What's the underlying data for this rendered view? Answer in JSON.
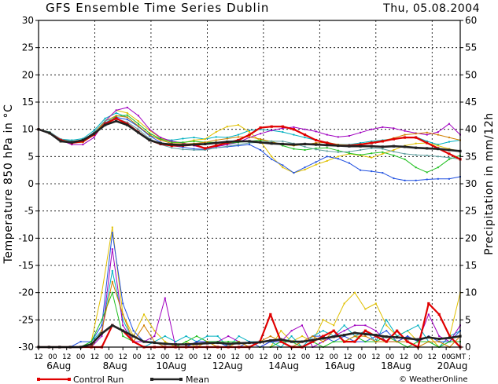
{
  "chart_data": {
    "type": "line",
    "title": "GFS Ensemble Time Series Dublin",
    "date": "Thu, 05.08.2004",
    "ylabel_left": "Temperature 850 hPa in °C",
    "ylabel_right": "Precipitation in mm/12h",
    "ylim_left": [
      -30,
      30
    ],
    "ylim_right": [
      0,
      60
    ],
    "yticks_left": [
      "30",
      "25",
      "20",
      "15",
      "10",
      "5",
      "0",
      "-5",
      "-10",
      "-15",
      "-20",
      "-25",
      "-30"
    ],
    "yticks_right": [
      "60",
      "55",
      "50",
      "45",
      "40",
      "35",
      "30",
      "25",
      "20",
      "15",
      "10",
      "5",
      "0"
    ],
    "x_hour_ticks": [
      "12",
      "00",
      "12",
      "00",
      "12",
      "00",
      "12",
      "00",
      "12",
      "00",
      "12",
      "00",
      "12",
      "00",
      "12",
      "00",
      "12",
      "00",
      "12",
      "00",
      "12",
      "00",
      "12",
      "00",
      "12",
      "00",
      "12",
      "00",
      "12",
      "00",
      "GMT ;"
    ],
    "x_date_labels": [
      {
        "label": "6Aug",
        "step": 2
      },
      {
        "label": "8Aug",
        "step": 6
      },
      {
        "label": "10Aug",
        "step": 10
      },
      {
        "label": "12Aug",
        "step": 14
      },
      {
        "label": "14Aug",
        "step": 18
      },
      {
        "label": "16Aug",
        "step": 22
      },
      {
        "label": "18Aug",
        "step": 26
      },
      {
        "label": "20Aug",
        "step": 30
      }
    ],
    "x_unit": "12-hourly steps from 05 Aug 12 GMT",
    "grid": true,
    "legend": [
      {
        "name": "Control Run",
        "color": "#e00000"
      },
      {
        "name": "Mean",
        "color": "#222222"
      }
    ],
    "credit": "© WeatherOnline",
    "temperature_series": [
      {
        "name": "Control Run",
        "color": "#e00000",
        "width": 2.2,
        "values": [
          10,
          9.3,
          8,
          7.5,
          7.8,
          9,
          11,
          12,
          11,
          9.5,
          8,
          7.3,
          7,
          7,
          7.2,
          6.5,
          7,
          7.5,
          8,
          9,
          10.3,
          10.5,
          10.5,
          10,
          9,
          8,
          7.5,
          7,
          7,
          7.2,
          7.5,
          7.8,
          8.2,
          8.5,
          8.5,
          7.5,
          6.5,
          5.5,
          4.5
        ]
      },
      {
        "name": "",
        "color": "#00b0c0",
        "width": 1,
        "values": [
          10,
          9.5,
          8.2,
          8,
          8.3,
          9.8,
          12,
          13,
          12.2,
          10.5,
          8.8,
          8.2,
          8,
          8.3,
          8.5,
          8.2,
          8.6,
          8.5,
          9,
          9.8,
          10,
          9.8,
          9.5,
          9,
          8.5,
          8,
          7.6,
          7.2,
          7.2,
          7.5,
          7.8,
          8,
          8.3,
          8.5,
          8.6,
          7.8,
          7.2,
          7.7,
          8
        ]
      },
      {
        "name": "",
        "color": "#e0c000",
        "width": 1,
        "values": [
          10,
          9.2,
          8,
          7.8,
          8,
          9.2,
          11.5,
          13.5,
          13,
          11.5,
          9.8,
          8.4,
          7.6,
          7.5,
          8,
          8.2,
          9.5,
          10.5,
          10.8,
          9.5,
          7.8,
          5,
          3,
          2,
          2.6,
          3.5,
          4.2,
          5,
          5.5,
          5.2,
          4.8,
          5.5,
          6.2,
          7,
          7.4,
          7.5,
          7,
          6.4,
          6
        ]
      },
      {
        "name": "",
        "color": "#a000c0",
        "width": 1,
        "values": [
          10,
          9.3,
          8,
          7.2,
          7.2,
          8.5,
          11.5,
          13.5,
          14,
          12.5,
          10,
          8.5,
          7.8,
          7.5,
          7,
          6.5,
          6.8,
          7.2,
          7.6,
          8.5,
          9.2,
          9.8,
          10.2,
          10.4,
          10,
          9.6,
          9,
          8.6,
          8.8,
          9.4,
          10,
          10.4,
          10.2,
          9.7,
          9.3,
          9,
          9.5,
          11,
          9
        ]
      },
      {
        "name": "",
        "color": "#2050e0",
        "width": 1,
        "values": [
          10,
          9.4,
          8,
          7.6,
          7.9,
          9.2,
          11.2,
          12.2,
          11.8,
          10.5,
          8.8,
          7.6,
          7,
          6.7,
          6.4,
          6.3,
          6.6,
          6.8,
          7,
          7.2,
          6.2,
          4.5,
          3.4,
          2,
          3,
          4,
          5,
          4.6,
          3.8,
          2.5,
          2.3,
          2,
          1,
          0.6,
          0.6,
          0.8,
          0.9,
          0.9,
          1.3
        ]
      },
      {
        "name": "",
        "color": "#20c020",
        "width": 1,
        "values": [
          10,
          9.5,
          8,
          7.7,
          7.9,
          9.2,
          11,
          12.4,
          12.6,
          11,
          9.3,
          8.2,
          7.6,
          7.6,
          7.8,
          7.6,
          7.6,
          7.4,
          7.6,
          7.8,
          8,
          7.8,
          7,
          6.4,
          6.2,
          6.5,
          6.6,
          6.1,
          5.6,
          5.3,
          5.6,
          5.8,
          5.2,
          4.5,
          3,
          2.1,
          3,
          4.5,
          5.2
        ]
      },
      {
        "name": "",
        "color": "#d08000",
        "width": 1,
        "values": [
          10,
          9.2,
          8,
          7.5,
          7.6,
          9,
          11.5,
          12.5,
          12.2,
          10.6,
          9,
          8,
          7.4,
          7.3,
          7.4,
          7.6,
          8,
          8.3,
          8.6,
          8.6,
          8.2,
          7.7,
          7.2,
          7,
          7.2,
          7.5,
          7.6,
          7.2,
          7.1,
          7.3,
          7.6,
          7.9,
          8.4,
          9,
          9.2,
          9.4,
          9,
          8.5,
          8
        ]
      },
      {
        "name": "",
        "color": "#60a0a0",
        "width": 1,
        "values": [
          10,
          9.5,
          8.2,
          7.8,
          8,
          9.5,
          11.6,
          12,
          11.3,
          10,
          8.3,
          7.2,
          6.6,
          6.3,
          6.2,
          6.2,
          6.6,
          6.9,
          7.2,
          7.5,
          7.6,
          7.8,
          7.8,
          7.4,
          6.8,
          6.3,
          6,
          5.8,
          5.9,
          6.2,
          6.5,
          6.4,
          5.9,
          5.5,
          5.3,
          5.2,
          5,
          4.8,
          4.5
        ]
      },
      {
        "name": "Mean",
        "color": "#222222",
        "width": 2.6,
        "values": [
          10,
          9.3,
          7.8,
          7.6,
          8,
          9.2,
          10.8,
          11.5,
          10.8,
          9.4,
          8,
          7.4,
          7.2,
          7.1,
          7.2,
          7.3,
          7.5,
          7.7,
          7.8,
          7.8,
          7.6,
          7.4,
          7.3,
          7.2,
          7.3,
          7.2,
          7.1,
          7,
          6.9,
          6.9,
          6.9,
          6.8,
          6.9,
          6.8,
          6.6,
          6.5,
          6.4,
          6.2,
          6
        ]
      }
    ],
    "precipitation_series": [
      {
        "name": "Control Run",
        "color": "#e00000",
        "width": 2.2,
        "values": [
          0,
          0,
          0,
          0,
          0,
          0,
          0,
          4,
          3,
          1,
          0,
          0,
          0,
          0,
          0,
          0,
          0,
          0,
          0,
          0,
          0,
          1,
          6,
          1,
          0,
          0,
          1,
          2,
          3,
          1,
          1,
          3,
          2,
          1,
          3,
          1,
          0,
          8,
          6,
          2,
          0
        ]
      },
      {
        "name": "",
        "color": "#e0c000",
        "width": 1,
        "values": [
          0,
          0,
          0,
          0,
          0,
          1,
          10,
          22,
          6,
          2,
          6,
          3,
          1,
          0,
          1,
          0,
          1,
          0,
          0,
          0,
          1,
          0,
          0,
          3,
          1,
          2,
          1,
          5,
          4,
          8,
          10,
          7,
          8,
          4,
          2,
          3,
          1,
          2,
          0,
          2,
          10
        ]
      },
      {
        "name": "",
        "color": "#00b0c0",
        "width": 1,
        "values": [
          0,
          0,
          0,
          0,
          0,
          1,
          3,
          14,
          5,
          1,
          0,
          1,
          2,
          1,
          2,
          1,
          2,
          2,
          0,
          2,
          1,
          1,
          1,
          0,
          2,
          0,
          2,
          3,
          2,
          4,
          2,
          3,
          1,
          5,
          2,
          3,
          4,
          1,
          0,
          2,
          3
        ]
      },
      {
        "name": "",
        "color": "#a000c0",
        "width": 1,
        "values": [
          0,
          0,
          0,
          0,
          0,
          0,
          2,
          18,
          4,
          1,
          1,
          2,
          9,
          0,
          0,
          1,
          1,
          1,
          2,
          1,
          0,
          0,
          1,
          1,
          3,
          4,
          0,
          1,
          2,
          3,
          4,
          4,
          3,
          1,
          1,
          2,
          1,
          6,
          2,
          1,
          4
        ]
      },
      {
        "name": "",
        "color": "#2050e0",
        "width": 1,
        "values": [
          0,
          0,
          0,
          0,
          1,
          1,
          4,
          21,
          8,
          3,
          1,
          1,
          0,
          0,
          0,
          1,
          1,
          1,
          0,
          0,
          1,
          0,
          1,
          1,
          0,
          1,
          2,
          2,
          1,
          2,
          1,
          1,
          2,
          3,
          1,
          2,
          1,
          2,
          1,
          1,
          3
        ]
      },
      {
        "name": "",
        "color": "#20c020",
        "width": 1,
        "values": [
          0,
          0,
          0,
          0,
          0,
          1,
          5,
          10,
          2,
          1,
          0,
          0,
          0,
          0,
          1,
          2,
          1,
          1,
          1,
          1,
          0,
          0,
          0,
          1,
          1,
          0,
          1,
          0,
          1,
          1,
          2,
          1,
          1,
          2,
          1,
          0,
          1,
          1,
          0,
          1,
          1
        ]
      },
      {
        "name": "",
        "color": "#d08000",
        "width": 1,
        "values": [
          0,
          0,
          0,
          0,
          0,
          0,
          3,
          12,
          6,
          1,
          4,
          1,
          0,
          0,
          0,
          0,
          1,
          0,
          0,
          1,
          0,
          1,
          2,
          1,
          0,
          1,
          2,
          1,
          3,
          1,
          2,
          2,
          1,
          1,
          1,
          1,
          0,
          1,
          1,
          0,
          2
        ]
      },
      {
        "name": "Mean",
        "color": "#222222",
        "width": 2.6,
        "values": [
          0,
          0,
          0,
          0,
          0,
          0.5,
          2.5,
          4,
          3,
          2,
          1,
          0.8,
          0.6,
          0.5,
          0.5,
          0.6,
          0.7,
          0.8,
          0.6,
          0.7,
          0.8,
          0.9,
          1.2,
          1.4,
          1,
          1,
          1.3,
          1.6,
          1.9,
          2.2,
          2.6,
          2.4,
          2.2,
          1.9,
          1.8,
          1.6,
          1.4,
          1.8,
          1.5,
          1.7,
          2
        ]
      }
    ]
  }
}
